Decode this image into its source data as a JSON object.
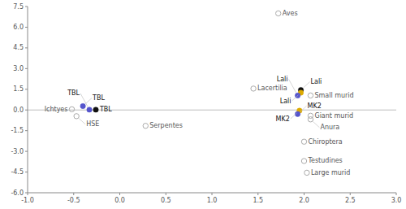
{
  "chart_data": {
    "type": "scatter",
    "xlim": [
      -1.0,
      3.0
    ],
    "ylim": [
      -6.0,
      7.5
    ],
    "xticks": [
      {
        "value": -1.0,
        "label": "-1.0"
      },
      -0.5,
      {
        "value": 0.0,
        "label": "0.0"
      },
      0.5,
      {
        "value": 1.0,
        "label": "1.0"
      },
      1.5,
      {
        "value": 2.0,
        "label": "2.0"
      },
      2.5,
      {
        "value": 3.0,
        "label": "3.0"
      }
    ],
    "yticks": [
      {
        "value": -6.0,
        "label": "-6.0"
      },
      -4.5,
      {
        "value": -3.0,
        "label": "-3.0"
      },
      -1.5,
      {
        "value": 0.0,
        "label": "0.0"
      },
      1.5,
      {
        "value": 3.0,
        "label": "3.0"
      },
      4.5,
      {
        "value": 6.0,
        "label": "6.0"
      },
      7.5
    ],
    "grid": false,
    "series": [
      {
        "marker": "open-circle",
        "color": "#aaaaaa",
        "labels": [
          "Aves",
          "Lacertilia",
          "Serpentes",
          "Small murid",
          "Giant murid",
          "Large murid",
          "Anura",
          "Chiroptera",
          "Testudines",
          "Ichtyes",
          "HSE"
        ],
        "x": [
          1.72,
          1.45,
          0.28,
          2.07,
          2.07,
          2.03,
          2.07,
          2.0,
          2.0,
          -0.52,
          -0.47
        ],
        "values": [
          7.0,
          1.55,
          -1.15,
          1.05,
          -0.42,
          -4.55,
          -0.68,
          -2.3,
          -3.7,
          0.05,
          -0.45
        ]
      },
      {
        "marker": "circle",
        "colors": [
          "#5555cc",
          "#5555cc",
          "#111111",
          "#111111",
          "#ddaa00",
          "#5555cc",
          "#ddaa00",
          "#5555cc"
        ],
        "labels": [
          "TBL",
          "TBL",
          "TBL",
          "Lali",
          "Lali",
          "Lali",
          "MK2",
          "MK2"
        ],
        "x": [
          -0.4,
          -0.33,
          -0.26,
          1.965,
          1.965,
          1.93,
          1.95,
          1.93
        ],
        "values": [
          0.28,
          0.02,
          0.02,
          1.45,
          1.25,
          1.05,
          -0.05,
          -0.3
        ]
      }
    ]
  }
}
